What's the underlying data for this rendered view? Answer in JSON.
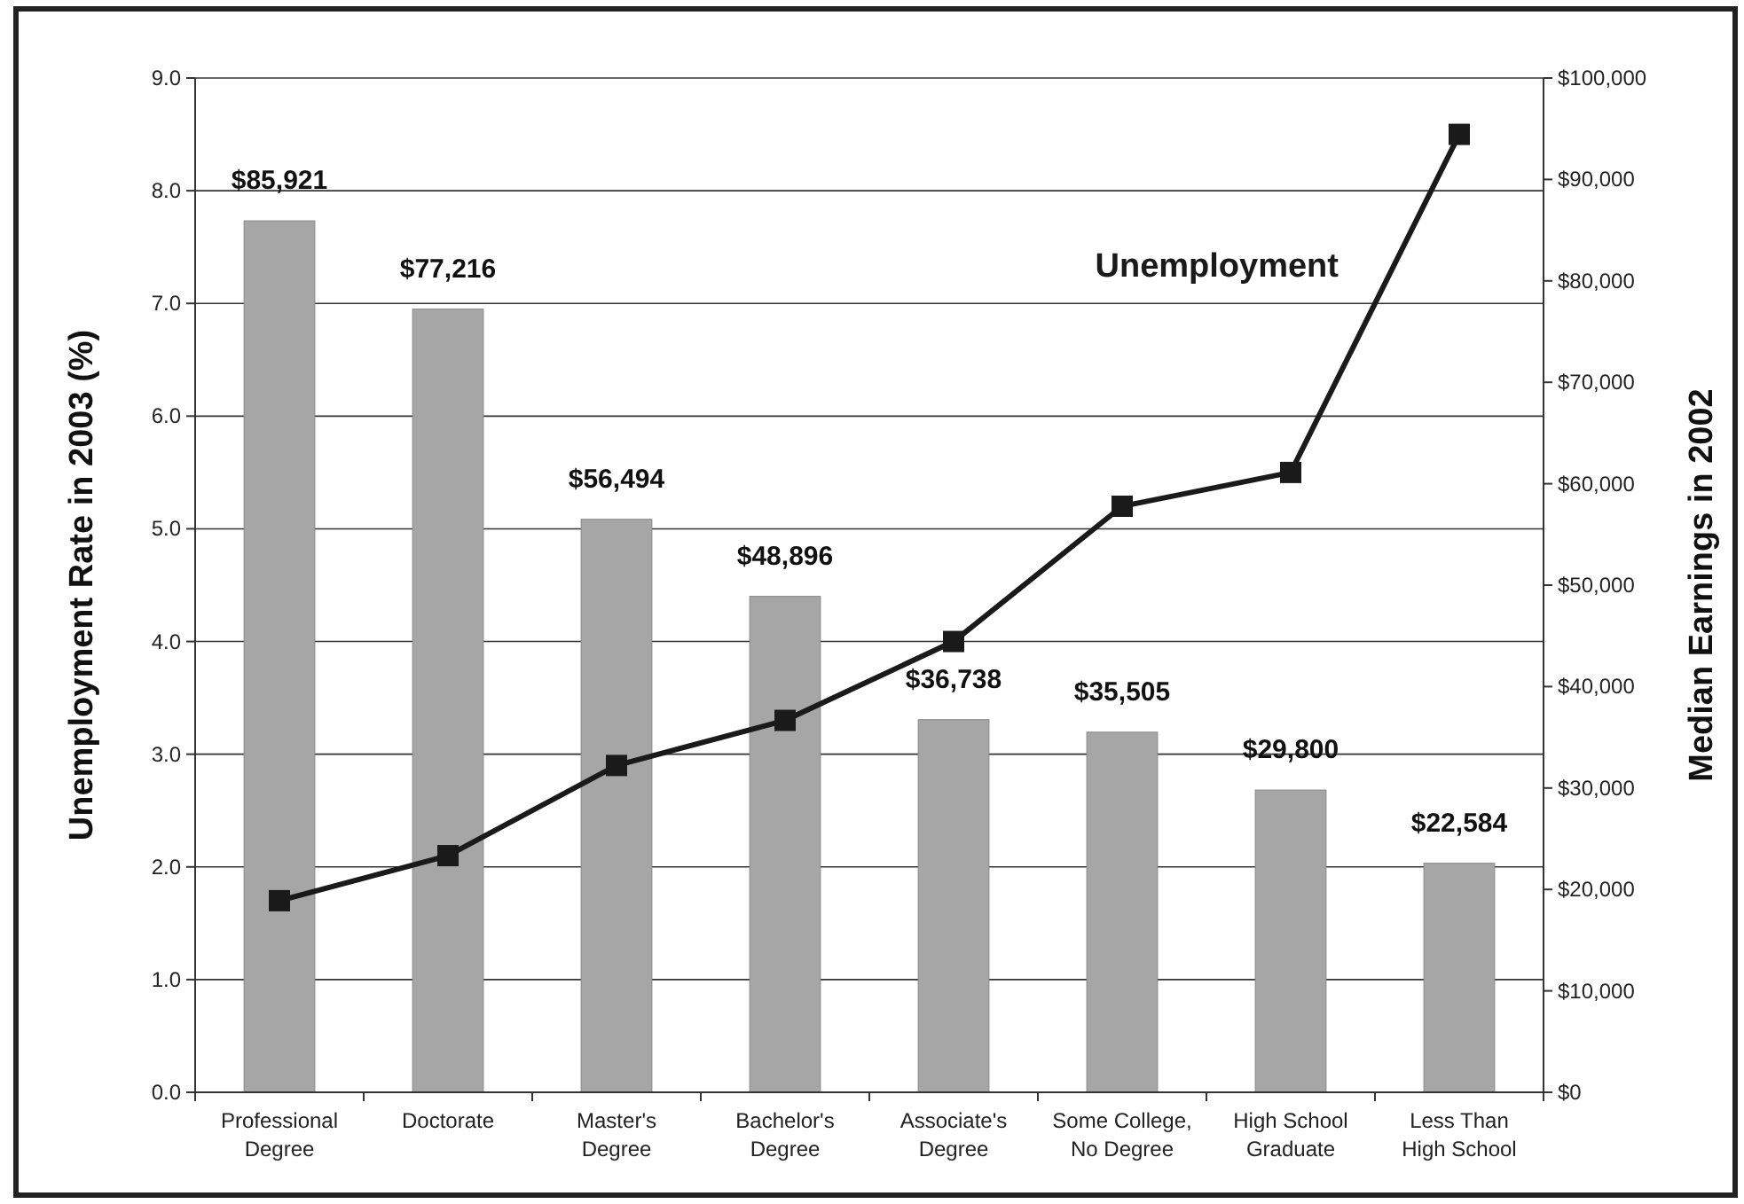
{
  "chart_data": {
    "type": "bar",
    "categories": [
      "Professional\nDegree",
      "Doctorate",
      "Master's\nDegree",
      "Bachelor's\nDegree",
      "Associate's\nDegree",
      "Some College,\nNo Degree",
      "High School\nGraduate",
      "Less Than\nHigh School"
    ],
    "series": [
      {
        "axis": "y2",
        "color": "#a6a6a6",
        "values": [
          85921,
          77216,
          56494,
          48896,
          36738,
          35505,
          29800,
          22584
        ],
        "value_labels": [
          "$85,921",
          "$77,216",
          "$56,494",
          "$48,896",
          "$36,738",
          "$35,505",
          "$29,800",
          "$22,584"
        ]
      },
      {
        "type": "line",
        "axis": "y",
        "name": "Unemployment",
        "color": "#1a1a1a",
        "marker": "square",
        "line_style": "solid",
        "values": [
          1.7,
          2.1,
          2.9,
          3.3,
          4.0,
          5.2,
          5.5,
          8.5
        ]
      }
    ],
    "ylabel": "Unemployment Rate in 2003 (%)",
    "y2label": "Median Earnings in 2002",
    "ylim": [
      0,
      9
    ],
    "yticks": [
      {
        "value": 0,
        "label": "0.0"
      },
      {
        "value": 1,
        "label": "1.0"
      },
      {
        "value": 2,
        "label": "2.0"
      },
      {
        "value": 3,
        "label": "3.0"
      },
      {
        "value": 4,
        "label": "4.0"
      },
      {
        "value": 5,
        "label": "5.0"
      },
      {
        "value": 6,
        "label": "6.0"
      },
      {
        "value": 7,
        "label": "7.0"
      },
      {
        "value": 8,
        "label": "8.0"
      },
      {
        "value": 9,
        "label": "9.0"
      }
    ],
    "y2lim": [
      0,
      100000
    ],
    "y2ticks": [
      {
        "value": 0,
        "label": "$0"
      },
      {
        "value": 10000,
        "label": "$10,000"
      },
      {
        "value": 20000,
        "label": "$20,000"
      },
      {
        "value": 30000,
        "label": "$30,000"
      },
      {
        "value": 40000,
        "label": "$40,000"
      },
      {
        "value": 50000,
        "label": "$50,000"
      },
      {
        "value": 60000,
        "label": "$60,000"
      },
      {
        "value": 70000,
        "label": "$70,000"
      },
      {
        "value": 80000,
        "label": "$80,000"
      },
      {
        "value": 90000,
        "label": "$90,000"
      },
      {
        "value": 100000,
        "label": "$100,000"
      }
    ],
    "grid": "y",
    "legend": false
  }
}
